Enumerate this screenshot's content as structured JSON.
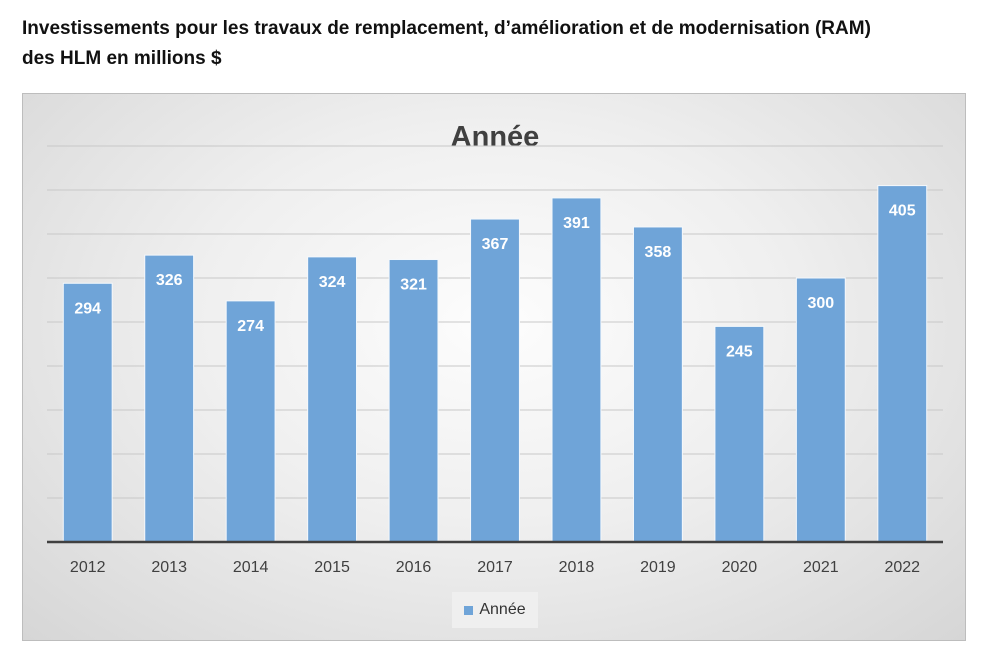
{
  "heading": {
    "line1": "Investissements pour les travaux de remplacement, d’amélioration et de modernisation (RAM)",
    "line2": "des HLM en millions $"
  },
  "colors": {
    "bar": "#6fa4d8",
    "bar_border": "#f4f8fc",
    "axis": "#404040",
    "grid": "#c8c8c8",
    "title": "#404040"
  },
  "chart_data": {
    "type": "bar",
    "title": "Année",
    "xlabel": "",
    "ylabel": "",
    "categories": [
      "2012",
      "2013",
      "2014",
      "2015",
      "2016",
      "2017",
      "2018",
      "2019",
      "2020",
      "2021",
      "2022"
    ],
    "series": [
      {
        "name": "Année",
        "values": [
          294,
          326,
          274,
          324,
          321,
          367,
          391,
          358,
          245,
          300,
          405
        ]
      }
    ],
    "ylim": [
      0,
      450
    ],
    "y_axis_labels": false,
    "data_labels": true,
    "grid": true,
    "legend": "bottom"
  }
}
